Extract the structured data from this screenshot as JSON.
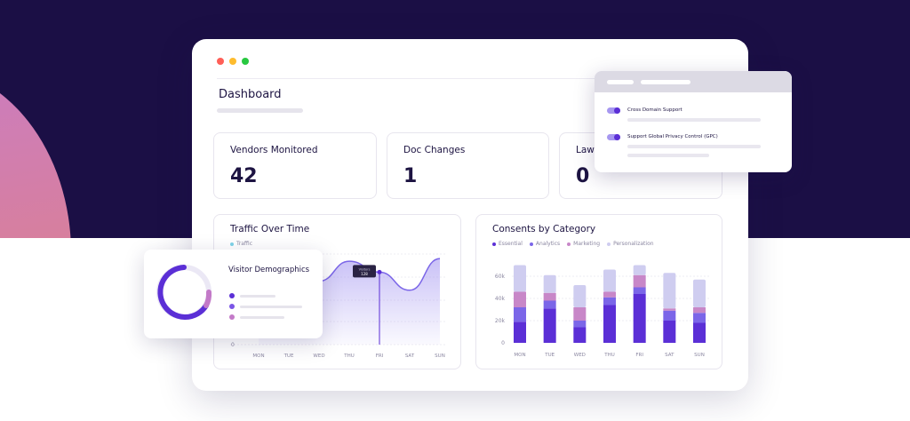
{
  "dashboard": {
    "title": "Dashboard"
  },
  "stats": [
    {
      "label": "Vendors Monitored",
      "value": "42"
    },
    {
      "label": "Doc Changes",
      "value": "1"
    },
    {
      "label": "Laws",
      "value": "0"
    }
  ],
  "traffic": {
    "title": "Traffic Over Time",
    "tooltip_label": "Visitors",
    "tooltip_value": "128"
  },
  "consents": {
    "title": "Consents by Category"
  },
  "popup": {
    "items": [
      {
        "label": "Cross Domain Support",
        "enabled": true
      },
      {
        "label": "Support Global Privacy Control (GPC)",
        "enabled": true
      }
    ]
  },
  "demographics": {
    "title": "Visitor Demographics",
    "legend_colors": [
      "#5b2fd6",
      "#7b55e6",
      "#c37ac8"
    ]
  },
  "colors": {
    "accent": "#5b2fd6",
    "essential": "#5b2fd6",
    "analytics": "#7b66e8",
    "marketing": "#c887c8",
    "personalization": "#cfcdf0"
  },
  "chart_data": [
    {
      "type": "area",
      "title": "Traffic Over Time",
      "legend": [
        "Traffic"
      ],
      "categories": [
        "MON",
        "TUE",
        "WED",
        "THU",
        "FRI",
        "SAT",
        "SUN"
      ],
      "yticks": [
        "0"
      ],
      "series": [
        {
          "name": "Traffic",
          "values": [
            85,
            90,
            70,
            92,
            80,
            60,
            95
          ]
        }
      ],
      "grid": true
    },
    {
      "type": "bar",
      "stacked": true,
      "title": "Consents by Category",
      "categories": [
        "MON",
        "TUE",
        "WED",
        "THU",
        "FRI",
        "SAT",
        "SUN"
      ],
      "yticks": [
        "0",
        "20k",
        "40k",
        "60k"
      ],
      "ylim": [
        0,
        80000
      ],
      "series": [
        {
          "name": "Essential",
          "values": [
            19000,
            31000,
            14000,
            34000,
            44000,
            20000,
            18000
          ]
        },
        {
          "name": "Analytics",
          "values": [
            13000,
            7000,
            6000,
            7000,
            6000,
            9000,
            9000
          ]
        },
        {
          "name": "Marketing",
          "values": [
            14000,
            7000,
            12000,
            5000,
            11000,
            2000,
            5000
          ]
        },
        {
          "name": "Personalization",
          "values": [
            24000,
            16000,
            20000,
            20000,
            9000,
            32000,
            25000
          ]
        }
      ]
    }
  ]
}
